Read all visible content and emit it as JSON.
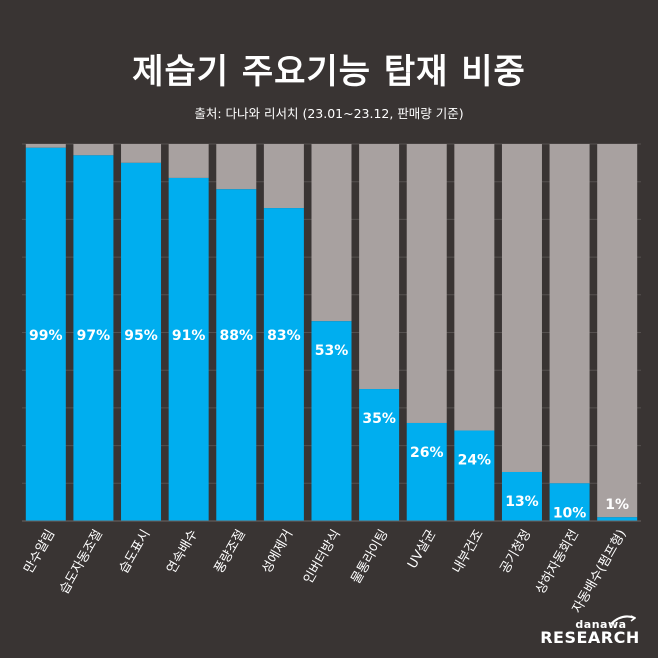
{
  "title": "제습기 주요기능 탑재 비중",
  "subtitle": "출처: 다나와 리서치 (23.01~23.12, 판매량 기준)",
  "logo": {
    "brand": "danawa",
    "research": "RESEARCH"
  },
  "colors": {
    "background": "#393433",
    "bar": "#00aeef",
    "remainder": "#a8a1a0",
    "grid": "#55504f",
    "text": "#ffffff"
  },
  "chart_data": {
    "type": "bar",
    "stacked": true,
    "title": "제습기 주요기능 탑재 비중",
    "ylim": [
      0,
      100
    ],
    "grid": true,
    "categories": [
      "만수알림",
      "습도자동조절",
      "습도표시",
      "연속배수",
      "풍량조절",
      "성에제거",
      "인버터방식",
      "물통라이팅",
      "UV살균",
      "내부건조",
      "공기청정",
      "상하자동회전",
      "자동배수(펌프형)"
    ],
    "values": [
      99,
      97,
      95,
      91,
      88,
      83,
      53,
      35,
      26,
      24,
      13,
      10,
      1
    ],
    "labels": [
      "99%",
      "97%",
      "95%",
      "91%",
      "88%",
      "83%",
      "53%",
      "35%",
      "26%",
      "24%",
      "13%",
      "10%",
      "1%"
    ]
  }
}
